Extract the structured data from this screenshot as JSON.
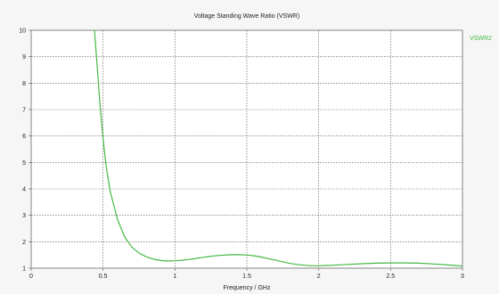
{
  "chart_data": {
    "type": "line",
    "title": "Voltage Standing Wave Ratio (VSWR)",
    "xlabel": "Frequency / GHz",
    "ylabel": "",
    "xlim": [
      0,
      3
    ],
    "ylim": [
      1,
      10
    ],
    "x_ticks": [
      0,
      0.5,
      1,
      1.5,
      2,
      2.5,
      3
    ],
    "x_tick_labels": [
      "0",
      "0.5",
      "1",
      "1.5",
      "2",
      "2.5",
      "3"
    ],
    "y_ticks": [
      1,
      2,
      3,
      4,
      5,
      6,
      7,
      8,
      9,
      10
    ],
    "y_tick_labels": [
      "1",
      "2",
      "3",
      "4",
      "5",
      "6",
      "7",
      "8",
      "9",
      "10"
    ],
    "grid": true,
    "legend_position": "right",
    "series": [
      {
        "name": "VSWR2",
        "color": "#45b845",
        "x": [
          0.44,
          0.46,
          0.48,
          0.5,
          0.52,
          0.55,
          0.6,
          0.65,
          0.7,
          0.75,
          0.8,
          0.85,
          0.9,
          0.95,
          1.0,
          1.05,
          1.1,
          1.15,
          1.2,
          1.25,
          1.3,
          1.35,
          1.4,
          1.45,
          1.5,
          1.55,
          1.6,
          1.65,
          1.7,
          1.75,
          1.8,
          1.85,
          1.9,
          1.95,
          2.0,
          2.05,
          2.1,
          2.2,
          2.3,
          2.4,
          2.5,
          2.6,
          2.7,
          2.8,
          2.9,
          3.0
        ],
        "y": [
          10.0,
          8.6,
          7.1,
          5.9,
          4.9,
          3.9,
          2.85,
          2.18,
          1.8,
          1.57,
          1.43,
          1.34,
          1.29,
          1.27,
          1.28,
          1.3,
          1.33,
          1.37,
          1.41,
          1.45,
          1.48,
          1.5,
          1.51,
          1.51,
          1.5,
          1.47,
          1.42,
          1.36,
          1.3,
          1.24,
          1.18,
          1.14,
          1.11,
          1.09,
          1.09,
          1.1,
          1.11,
          1.14,
          1.17,
          1.19,
          1.2,
          1.2,
          1.19,
          1.16,
          1.12,
          1.08
        ]
      }
    ]
  }
}
